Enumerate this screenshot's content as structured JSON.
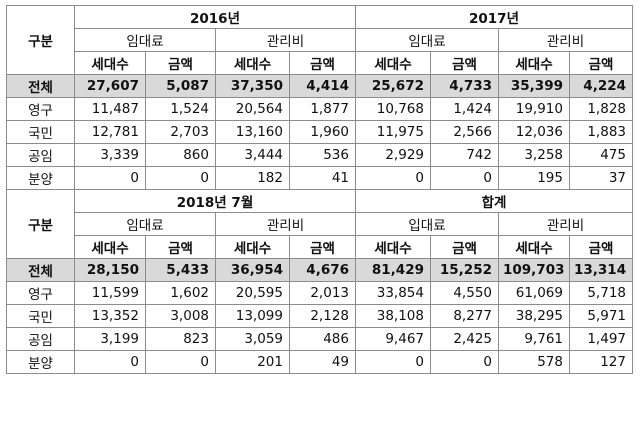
{
  "label_gubun": "구분",
  "section1": {
    "year1": "2016년",
    "year2": "2017년",
    "groups": [
      "임대료",
      "관리비",
      "임대료",
      "관리비"
    ],
    "subs": [
      "세대수",
      "금액",
      "세대수",
      "금액",
      "세대수",
      "금액",
      "세대수",
      "금액"
    ],
    "rows": [
      {
        "name": "전체",
        "values": [
          "27,607",
          "5,087",
          "37,350",
          "4,414",
          "25,672",
          "4,733",
          "35,399",
          "4,224"
        ]
      },
      {
        "name": "영구",
        "values": [
          "11,487",
          "1,524",
          "20,564",
          "1,877",
          "10,768",
          "1,424",
          "19,910",
          "1,828"
        ]
      },
      {
        "name": "국민",
        "values": [
          "12,781",
          "2,703",
          "13,160",
          "1,960",
          "11,975",
          "2,566",
          "12,036",
          "1,883"
        ]
      },
      {
        "name": "공임",
        "values": [
          "3,339",
          "860",
          "3,444",
          "536",
          "2,929",
          "742",
          "3,258",
          "475"
        ]
      },
      {
        "name": "분양",
        "values": [
          "0",
          "0",
          "182",
          "41",
          "0",
          "0",
          "195",
          "37"
        ]
      }
    ]
  },
  "section2": {
    "year1": "2018년 7월",
    "year2": "합계",
    "groups": [
      "임대료",
      "관리비",
      "입대료",
      "관리비"
    ],
    "subs": [
      "세대수",
      "금액",
      "세대수",
      "금액",
      "세대수",
      "금액",
      "세대수",
      "금액"
    ],
    "rows": [
      {
        "name": "전체",
        "values": [
          "28,150",
          "5,433",
          "36,954",
          "4,676",
          "81,429",
          "15,252",
          "109,703",
          "13,314"
        ]
      },
      {
        "name": "영구",
        "values": [
          "11,599",
          "1,602",
          "20,595",
          "2,013",
          "33,854",
          "4,550",
          "61,069",
          "5,718"
        ]
      },
      {
        "name": "국민",
        "values": [
          "13,352",
          "3,008",
          "13,099",
          "2,128",
          "38,108",
          "8,277",
          "38,295",
          "5,971"
        ]
      },
      {
        "name": "공임",
        "values": [
          "3,199",
          "823",
          "3,059",
          "486",
          "9,467",
          "2,425",
          "9,761",
          "1,497"
        ]
      },
      {
        "name": "분양",
        "values": [
          "0",
          "0",
          "201",
          "49",
          "0",
          "0",
          "578",
          "127"
        ]
      }
    ]
  }
}
